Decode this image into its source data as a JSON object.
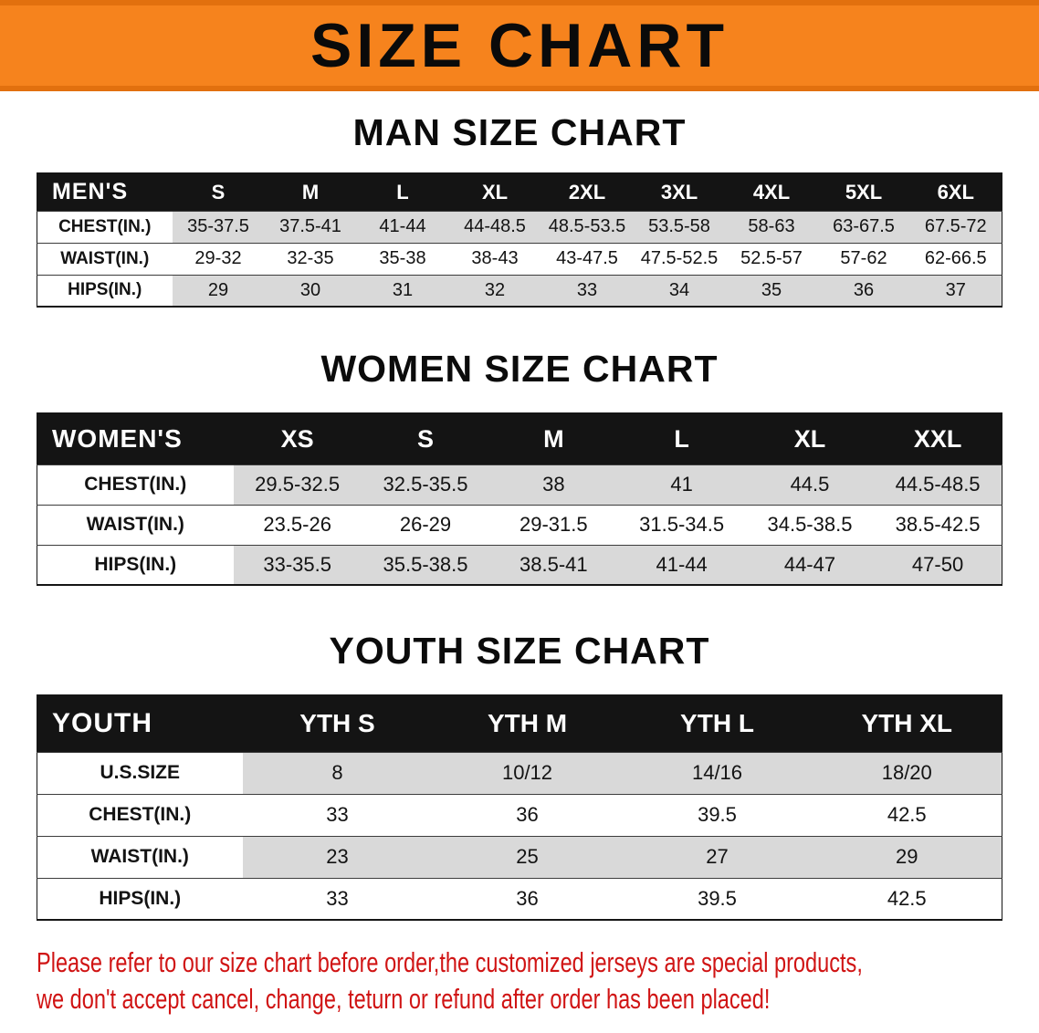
{
  "banner": {
    "title": "SIZE CHART"
  },
  "chart_data": [
    {
      "type": "table",
      "title": "MAN SIZE CHART",
      "corner_label": "MEN'S",
      "columns": [
        "S",
        "M",
        "L",
        "XL",
        "2XL",
        "3XL",
        "4XL",
        "5XL",
        "6XL"
      ],
      "rows": [
        {
          "label": "CHEST(IN.)",
          "values": [
            "35-37.5",
            "37.5-41",
            "41-44",
            "44-48.5",
            "48.5-53.5",
            "53.5-58",
            "58-63",
            "63-67.5",
            "67.5-72"
          ]
        },
        {
          "label": "WAIST(IN.)",
          "values": [
            "29-32",
            "32-35",
            "35-38",
            "38-43",
            "43-47.5",
            "47.5-52.5",
            "52.5-57",
            "57-62",
            "62-66.5"
          ]
        },
        {
          "label": "HIPS(IN.)",
          "values": [
            "29",
            "30",
            "31",
            "32",
            "33",
            "34",
            "35",
            "36",
            "37"
          ]
        }
      ]
    },
    {
      "type": "table",
      "title": "WOMEN SIZE CHART",
      "corner_label": "WOMEN'S",
      "columns": [
        "XS",
        "S",
        "M",
        "L",
        "XL",
        "XXL"
      ],
      "rows": [
        {
          "label": "CHEST(IN.)",
          "values": [
            "29.5-32.5",
            "32.5-35.5",
            "38",
            "41",
            "44.5",
            "44.5-48.5"
          ]
        },
        {
          "label": "WAIST(IN.)",
          "values": [
            "23.5-26",
            "26-29",
            "29-31.5",
            "31.5-34.5",
            "34.5-38.5",
            "38.5-42.5"
          ]
        },
        {
          "label": "HIPS(IN.)",
          "values": [
            "33-35.5",
            "35.5-38.5",
            "38.5-41",
            "41-44",
            "44-47",
            "47-50"
          ]
        }
      ]
    },
    {
      "type": "table",
      "title": "YOUTH SIZE CHART",
      "corner_label": "YOUTH",
      "columns": [
        "YTH S",
        "YTH M",
        "YTH L",
        "YTH XL"
      ],
      "rows": [
        {
          "label": "U.S.SIZE",
          "values": [
            "8",
            "10/12",
            "14/16",
            "18/20"
          ]
        },
        {
          "label": "CHEST(IN.)",
          "values": [
            "33",
            "36",
            "39.5",
            "42.5"
          ]
        },
        {
          "label": "WAIST(IN.)",
          "values": [
            "23",
            "25",
            "27",
            "29"
          ]
        },
        {
          "label": "HIPS(IN.)",
          "values": [
            "33",
            "36",
            "39.5",
            "42.5"
          ]
        }
      ]
    }
  ],
  "disclaimer": {
    "line1": "Please refer to our size chart before order,the customized jerseys are special products,",
    "line2": "we don't accept cancel, change, teturn or refund after order has been placed!"
  },
  "colors": {
    "banner_orange": "#f6831d",
    "header_black": "#141414",
    "row_gray": "#d9d9d9",
    "disclaimer_red": "#d01414"
  }
}
